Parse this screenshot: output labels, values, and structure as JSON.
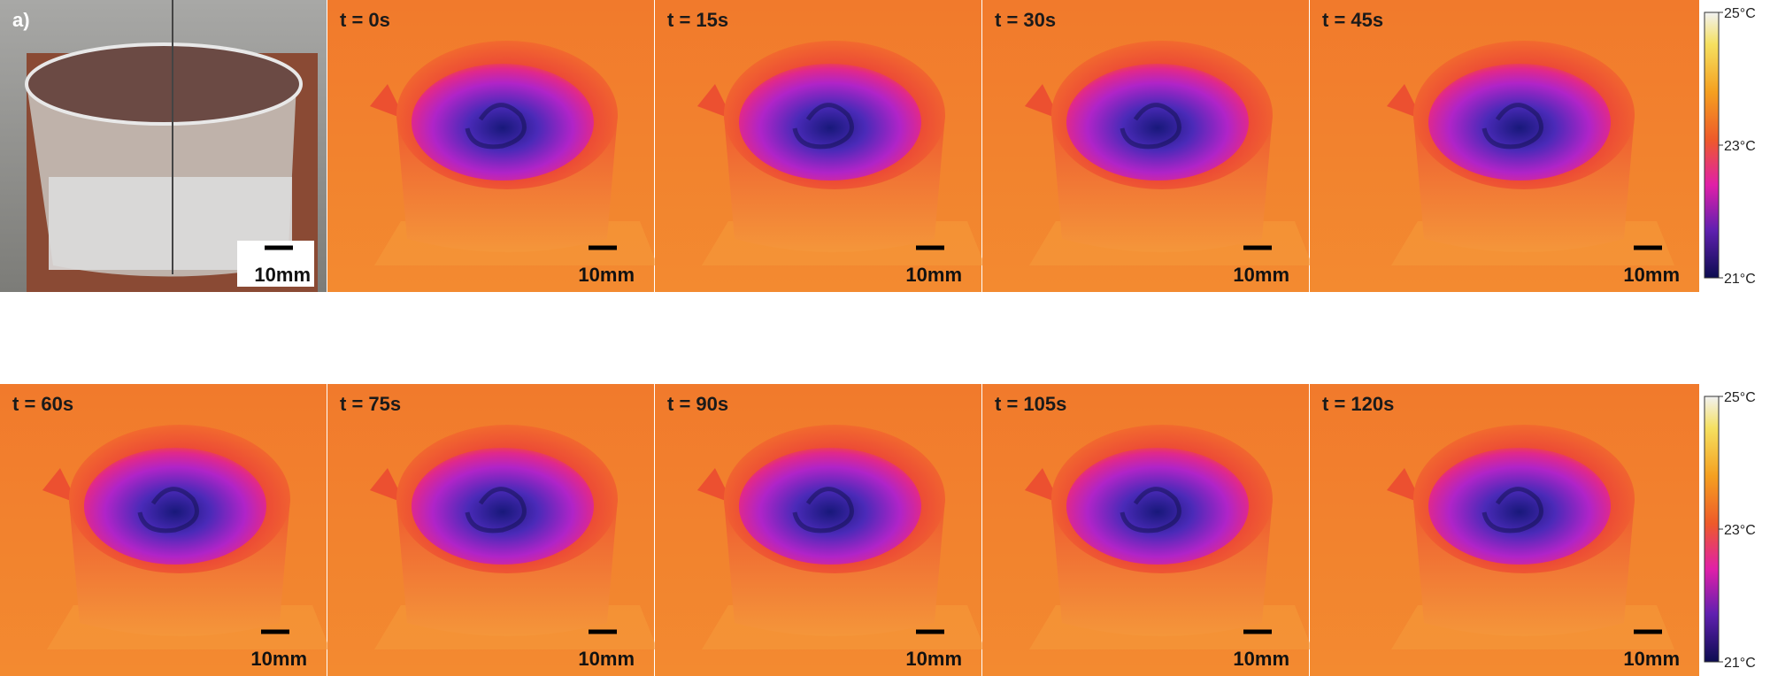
{
  "rows": [
    {
      "panels": [
        {
          "label": "a)",
          "scale_bar": "10mm"
        },
        {
          "label": "t = 0s",
          "scale_bar": "10mm"
        },
        {
          "label": "t = 15s",
          "scale_bar": "10mm"
        },
        {
          "label": "t = 30s",
          "scale_bar": "10mm"
        },
        {
          "label": "t = 45s",
          "scale_bar": "10mm"
        }
      ],
      "colorbar": [
        "25°C",
        "23°C",
        "21°C"
      ]
    },
    {
      "panels": [
        {
          "label": "t = 60s",
          "scale_bar": "10mm"
        },
        {
          "label": "t = 75s",
          "scale_bar": "10mm"
        },
        {
          "label": "t = 90s",
          "scale_bar": "10mm"
        },
        {
          "label": "t = 105s",
          "scale_bar": "10mm"
        },
        {
          "label": "t = 120s",
          "scale_bar": "10mm"
        }
      ],
      "colorbar": [
        "25°C",
        "23°C",
        "21°C"
      ]
    }
  ]
}
